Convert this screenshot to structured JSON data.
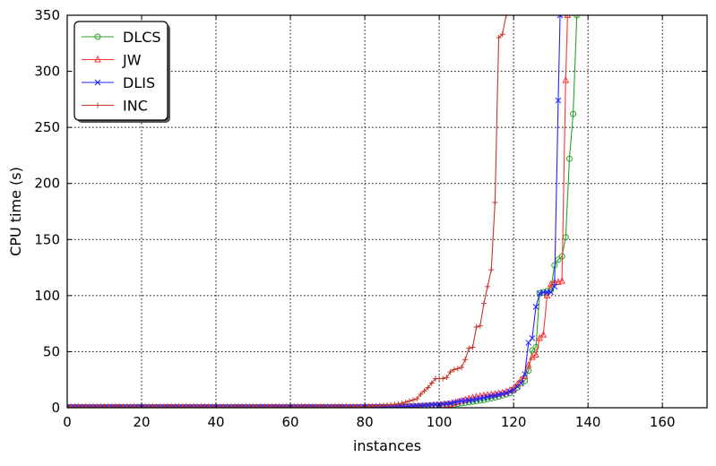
{
  "chart_data": {
    "type": "line",
    "title": "",
    "xlabel": "instances",
    "ylabel": "CPU time (s)",
    "xlim": [
      0,
      172
    ],
    "ylim": [
      0,
      350
    ],
    "xticks": [
      0,
      20,
      40,
      60,
      80,
      100,
      120,
      140,
      160
    ],
    "yticks": [
      0,
      50,
      100,
      150,
      200,
      250,
      300,
      350
    ],
    "grid": true,
    "legend_position": "top-left",
    "series": [
      {
        "name": "DLCS",
        "color": "#2ca02c",
        "marker": "circle",
        "points": [
          [
            0,
            0.5
          ],
          [
            10,
            0.5
          ],
          [
            20,
            0.5
          ],
          [
            30,
            0.5
          ],
          [
            40,
            0.5
          ],
          [
            50,
            0.5
          ],
          [
            60,
            0.5
          ],
          [
            70,
            0.5
          ],
          [
            80,
            0.5
          ],
          [
            90,
            0.7
          ],
          [
            95,
            1
          ],
          [
            100,
            2
          ],
          [
            104,
            3
          ],
          [
            108,
            5
          ],
          [
            112,
            7
          ],
          [
            116,
            10
          ],
          [
            119,
            13
          ],
          [
            121,
            18
          ],
          [
            122,
            22
          ],
          [
            123,
            24
          ],
          [
            124,
            33
          ],
          [
            125,
            51
          ],
          [
            126,
            54
          ],
          [
            127,
            102
          ],
          [
            128,
            103
          ],
          [
            129,
            104
          ],
          [
            130,
            105
          ],
          [
            131,
            127
          ],
          [
            132,
            132
          ],
          [
            133,
            135
          ],
          [
            134,
            152
          ],
          [
            135,
            222
          ],
          [
            136,
            262
          ],
          [
            137,
            350
          ]
        ]
      },
      {
        "name": "JW",
        "color": "#ff3333",
        "marker": "triangle",
        "points": [
          [
            0,
            0.5
          ],
          [
            10,
            0.5
          ],
          [
            20,
            0.5
          ],
          [
            30,
            0.5
          ],
          [
            40,
            0.5
          ],
          [
            50,
            0.5
          ],
          [
            60,
            0.5
          ],
          [
            70,
            0.5
          ],
          [
            80,
            0.5
          ],
          [
            90,
            0.8
          ],
          [
            95,
            1
          ],
          [
            100,
            2
          ],
          [
            103,
            3
          ],
          [
            106,
            6
          ],
          [
            109,
            9
          ],
          [
            112,
            11
          ],
          [
            115,
            12
          ],
          [
            118,
            14
          ],
          [
            120,
            17
          ],
          [
            122,
            25
          ],
          [
            123,
            28
          ],
          [
            124,
            38
          ],
          [
            125,
            45
          ],
          [
            126,
            47
          ],
          [
            127,
            62
          ],
          [
            128,
            65
          ],
          [
            129,
            100
          ],
          [
            130,
            110
          ],
          [
            131,
            112
          ],
          [
            132,
            112
          ],
          [
            133,
            113
          ],
          [
            134,
            292
          ],
          [
            134.5,
            350
          ]
        ]
      },
      {
        "name": "DLIS",
        "color": "#2222ff",
        "marker": "x",
        "points": [
          [
            0,
            0.5
          ],
          [
            10,
            0.5
          ],
          [
            20,
            0.5
          ],
          [
            30,
            0.5
          ],
          [
            40,
            0.5
          ],
          [
            50,
            0.5
          ],
          [
            60,
            0.5
          ],
          [
            70,
            0.5
          ],
          [
            80,
            0.5
          ],
          [
            90,
            1
          ],
          [
            95,
            2
          ],
          [
            100,
            3
          ],
          [
            103,
            4
          ],
          [
            106,
            6
          ],
          [
            109,
            7
          ],
          [
            112,
            9
          ],
          [
            115,
            11
          ],
          [
            118,
            13
          ],
          [
            120,
            16
          ],
          [
            122,
            22
          ],
          [
            123,
            30
          ],
          [
            124,
            58
          ],
          [
            125,
            62
          ],
          [
            126,
            90
          ],
          [
            127,
            102
          ],
          [
            128,
            103
          ],
          [
            129,
            103
          ],
          [
            130,
            103
          ],
          [
            131,
            108
          ],
          [
            132,
            274
          ],
          [
            132.5,
            350
          ]
        ]
      },
      {
        "name": "INC",
        "color": "#c0392b",
        "marker": "plus",
        "points": [
          [
            0,
            0.5
          ],
          [
            10,
            0.5
          ],
          [
            20,
            0.5
          ],
          [
            30,
            0.5
          ],
          [
            40,
            0.5
          ],
          [
            50,
            0.5
          ],
          [
            60,
            0.5
          ],
          [
            70,
            0.5
          ],
          [
            80,
            0.8
          ],
          [
            85,
            2
          ],
          [
            88,
            3
          ],
          [
            90,
            4
          ],
          [
            92,
            6
          ],
          [
            94,
            8
          ],
          [
            95,
            12
          ],
          [
            96,
            15
          ],
          [
            97,
            18
          ],
          [
            98,
            22
          ],
          [
            99,
            26
          ],
          [
            100,
            26
          ],
          [
            101,
            26
          ],
          [
            102,
            27
          ],
          [
            103,
            32
          ],
          [
            104,
            34
          ],
          [
            105,
            35
          ],
          [
            106,
            36
          ],
          [
            107,
            43
          ],
          [
            108,
            53
          ],
          [
            109,
            54
          ],
          [
            110,
            72
          ],
          [
            111,
            73
          ],
          [
            112,
            93
          ],
          [
            113,
            108
          ],
          [
            114,
            123
          ],
          [
            115,
            183
          ],
          [
            116,
            330
          ],
          [
            117,
            333
          ],
          [
            118,
            350
          ]
        ]
      }
    ]
  }
}
